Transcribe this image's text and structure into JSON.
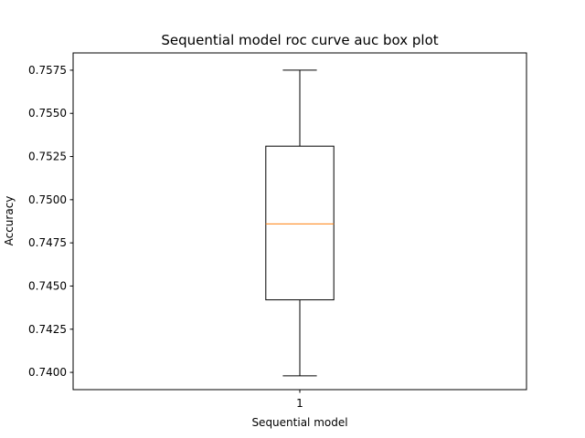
{
  "chart_data": {
    "type": "box",
    "title": "Sequential model roc curve auc box plot",
    "xlabel": "Sequential model",
    "ylabel": "Accuracy",
    "categories": [
      "1"
    ],
    "ylim": [
      0.739,
      0.7585
    ],
    "yticks": [
      0.74,
      0.7425,
      0.745,
      0.7475,
      0.75,
      0.7525,
      0.755,
      0.7575
    ],
    "ytick_labels": [
      "0.7400",
      "0.7425",
      "0.7450",
      "0.7475",
      "0.7500",
      "0.7525",
      "0.7550",
      "0.7575"
    ],
    "boxes": [
      {
        "category": "1",
        "whisker_low": 0.7398,
        "q1": 0.7442,
        "median": 0.7486,
        "q3": 0.7531,
        "whisker_high": 0.7575
      }
    ],
    "colors": {
      "box": "#000000",
      "median": "#ff7f0e"
    },
    "grid": false
  }
}
